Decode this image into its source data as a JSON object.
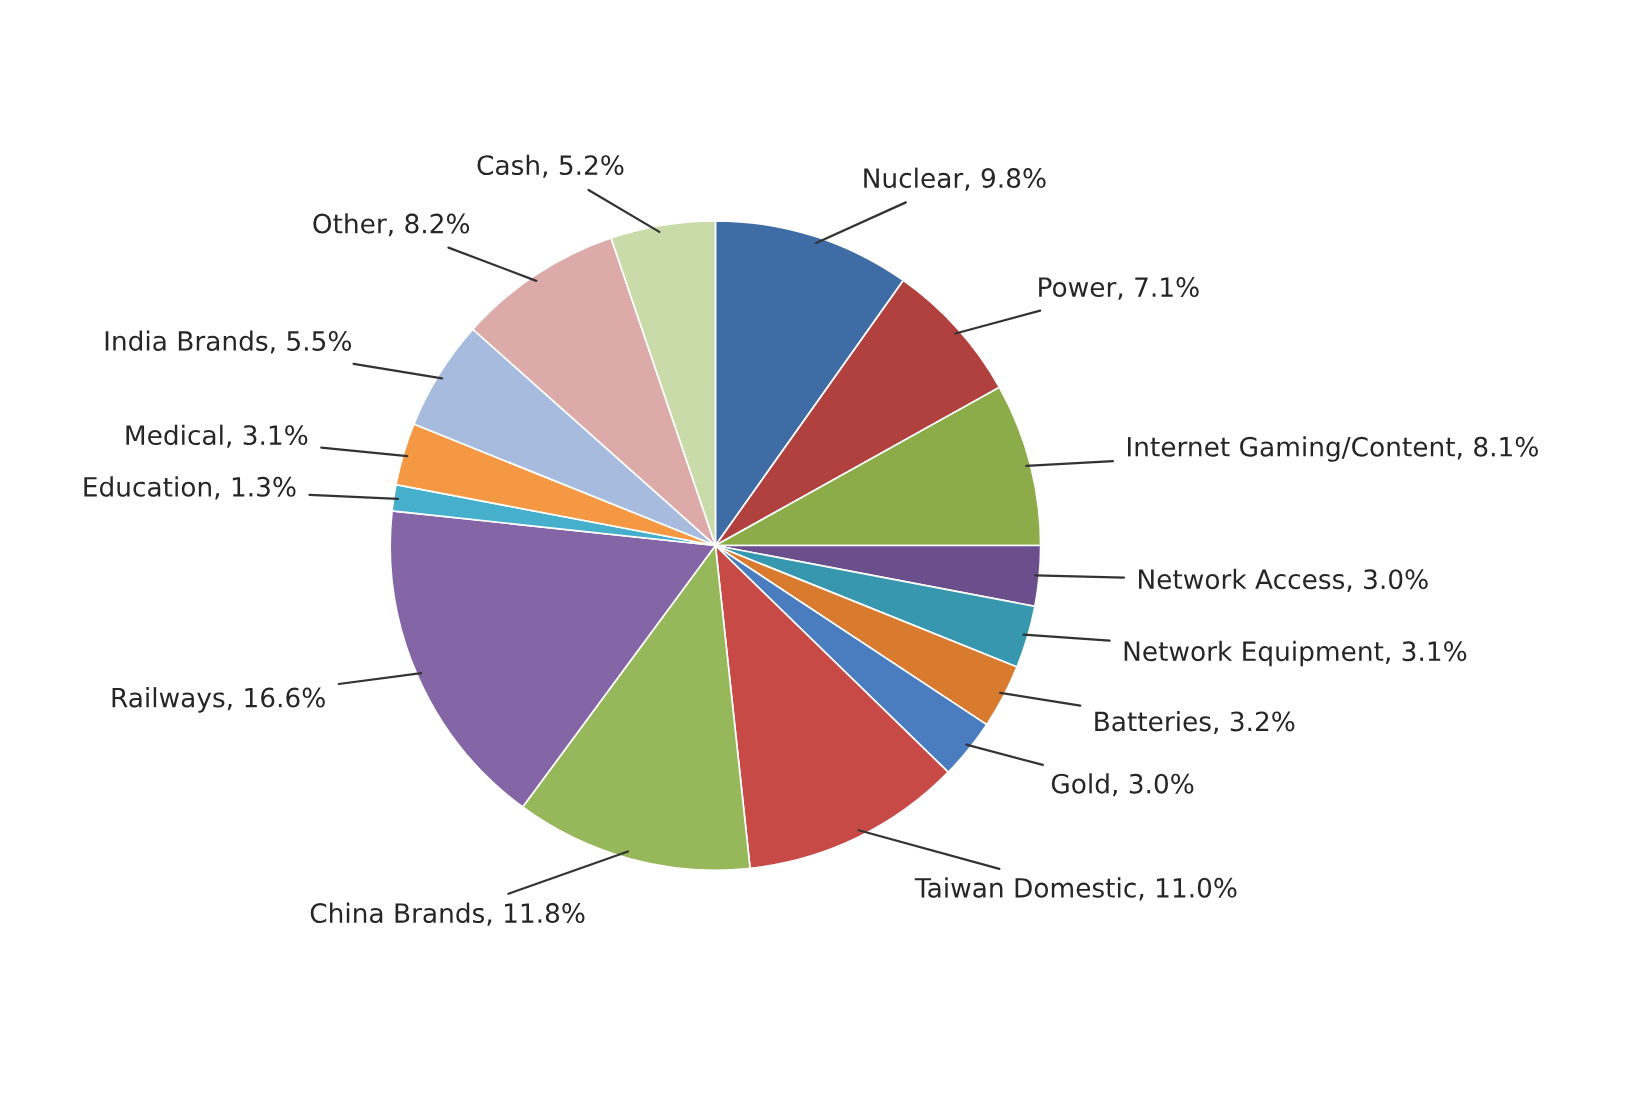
{
  "chart_data": {
    "type": "pie",
    "categories": [
      "Nuclear",
      "Power",
      "Internet Gaming/Content",
      "Network Access",
      "Network Equipment",
      "Batteries",
      "Gold",
      "Taiwan Domestic",
      "China Brands",
      "Railways",
      "Education",
      "Medical",
      "India Brands",
      "Other",
      "Cash"
    ],
    "values": [
      9.8,
      7.1,
      8.1,
      3.0,
      3.1,
      3.2,
      3.0,
      11.0,
      11.8,
      16.6,
      1.3,
      3.1,
      5.5,
      8.2,
      5.2
    ],
    "value_labels": [
      "9.8%",
      "7.1%",
      "8.1%",
      "3.0%",
      "3.1%",
      "3.2%",
      "3.0%",
      "11.0%",
      "11.8%",
      "16.6%",
      "1.3%",
      "3.1%",
      "5.5%",
      "8.2%",
      "5.2%"
    ],
    "colors": [
      "#3f6ca5",
      "#b0413e",
      "#8cac4a",
      "#6a4f8c",
      "#3797ae",
      "#d97b2f",
      "#4a7cc0",
      "#c84a47",
      "#96b85a",
      "#8466a6",
      "#46b0cc",
      "#f49843",
      "#a6bbdd",
      "#dcaaa8",
      "#c9dba9"
    ]
  }
}
